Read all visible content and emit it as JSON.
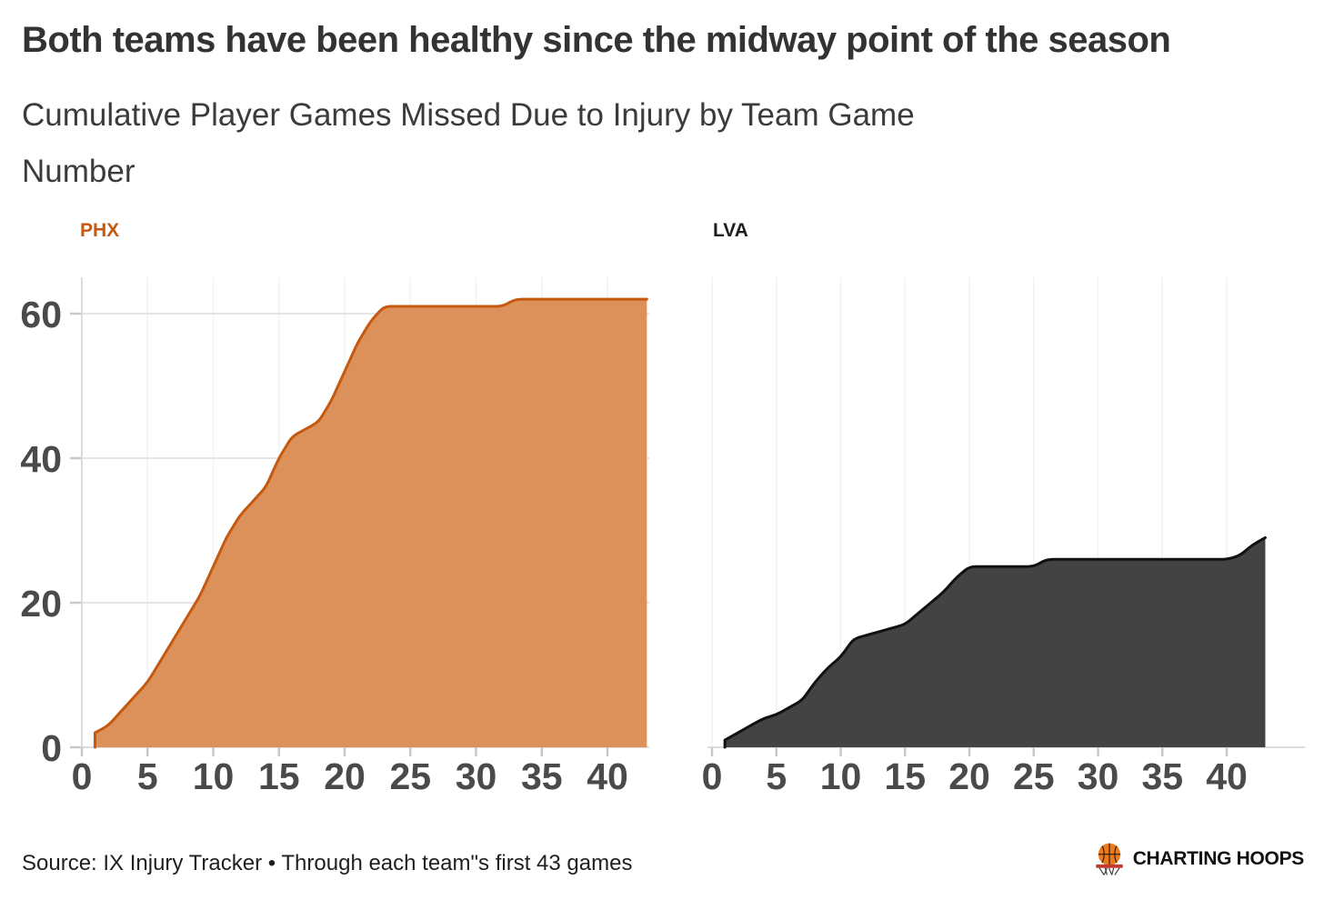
{
  "header": {
    "title": "Both teams have been healthy since the midway point of the season",
    "subtitle_lines": [
      "Cumulative Player Games Missed Due to Injury by Team Game",
      "Number"
    ]
  },
  "source_note": "Source: IX Injury Tracker • Through each team\"s first 43 games",
  "logo": {
    "text": "CHARTING HOOPS",
    "icon": "basketball-hoop-icon"
  },
  "colors": {
    "background": "#ffffff",
    "title": "#333333",
    "subtitle": "#3b3b3b",
    "tick_label": "#4a4a4a",
    "gridline": "#e4e4e4",
    "gridline_vertical": "#f2f2f2",
    "axis_line": "#dcdcdc",
    "tick_mark": "#c8c8c8",
    "phx_fill": "#DC915A",
    "phx_stroke": "#C4590F",
    "lva_fill": "#434343",
    "lva_stroke": "#111111",
    "source_text": "#1f1f1f",
    "logo_text": "#111111",
    "ball_orange": "#EC7B1C",
    "rim_red": "#C23B2E"
  },
  "chart_data": [
    {
      "type": "area",
      "name": "PHX",
      "title": "Cumulative Player Games Missed Due to Injury by Team Game Number",
      "xlabel": "Team Game Number",
      "ylabel": "Cumulative Player Games Missed",
      "label_color": "#C4590F",
      "fill": "#DC915A",
      "stroke": "#C4590F",
      "x_is_game_number": true,
      "x_start": 1,
      "values": [
        2,
        3,
        5,
        7,
        9,
        12,
        15,
        18,
        21,
        25,
        29,
        32,
        34,
        36,
        40,
        43,
        44,
        45,
        48,
        52,
        56,
        59,
        61,
        61,
        61,
        61,
        61,
        61,
        61,
        61,
        61,
        61,
        62,
        62,
        62,
        62,
        62,
        62,
        62,
        62,
        62,
        62,
        62
      ],
      "xlabel_ticks": [
        0,
        5,
        10,
        15,
        20,
        25,
        30,
        35,
        40
      ],
      "ylabel_ticks": [
        0,
        20,
        40,
        60
      ],
      "xlim": [
        0,
        43.5
      ],
      "ylim": [
        0,
        65
      ],
      "grid": "on",
      "legend_position": "top-left"
    },
    {
      "type": "area",
      "name": "LVA",
      "title": "Cumulative Player Games Missed Due to Injury by Team Game Number",
      "xlabel": "Team Game Number",
      "ylabel": "Cumulative Player Games Missed",
      "label_color": "#1d1d1d",
      "fill": "#434343",
      "stroke": "#111111",
      "x_is_game_number": true,
      "x_start": 1,
      "values": [
        1,
        2,
        3,
        4,
        4.5,
        5.5,
        6.5,
        9,
        11,
        12.5,
        15,
        15.5,
        16,
        16.5,
        17,
        18.5,
        20,
        21.5,
        23.5,
        25,
        25,
        25,
        25,
        25,
        25,
        26,
        26,
        26,
        26,
        26,
        26,
        26,
        26,
        26,
        26,
        26,
        26,
        26,
        26,
        26,
        26.5,
        28,
        29
      ],
      "xlabel_ticks": [
        0,
        5,
        10,
        15,
        20,
        25,
        30,
        35,
        40
      ],
      "ylabel_ticks": [],
      "xlim": [
        0,
        43.5
      ],
      "ylim": [
        0,
        65
      ],
      "grid": "x-axis-only",
      "legend_position": "top-left"
    }
  ]
}
